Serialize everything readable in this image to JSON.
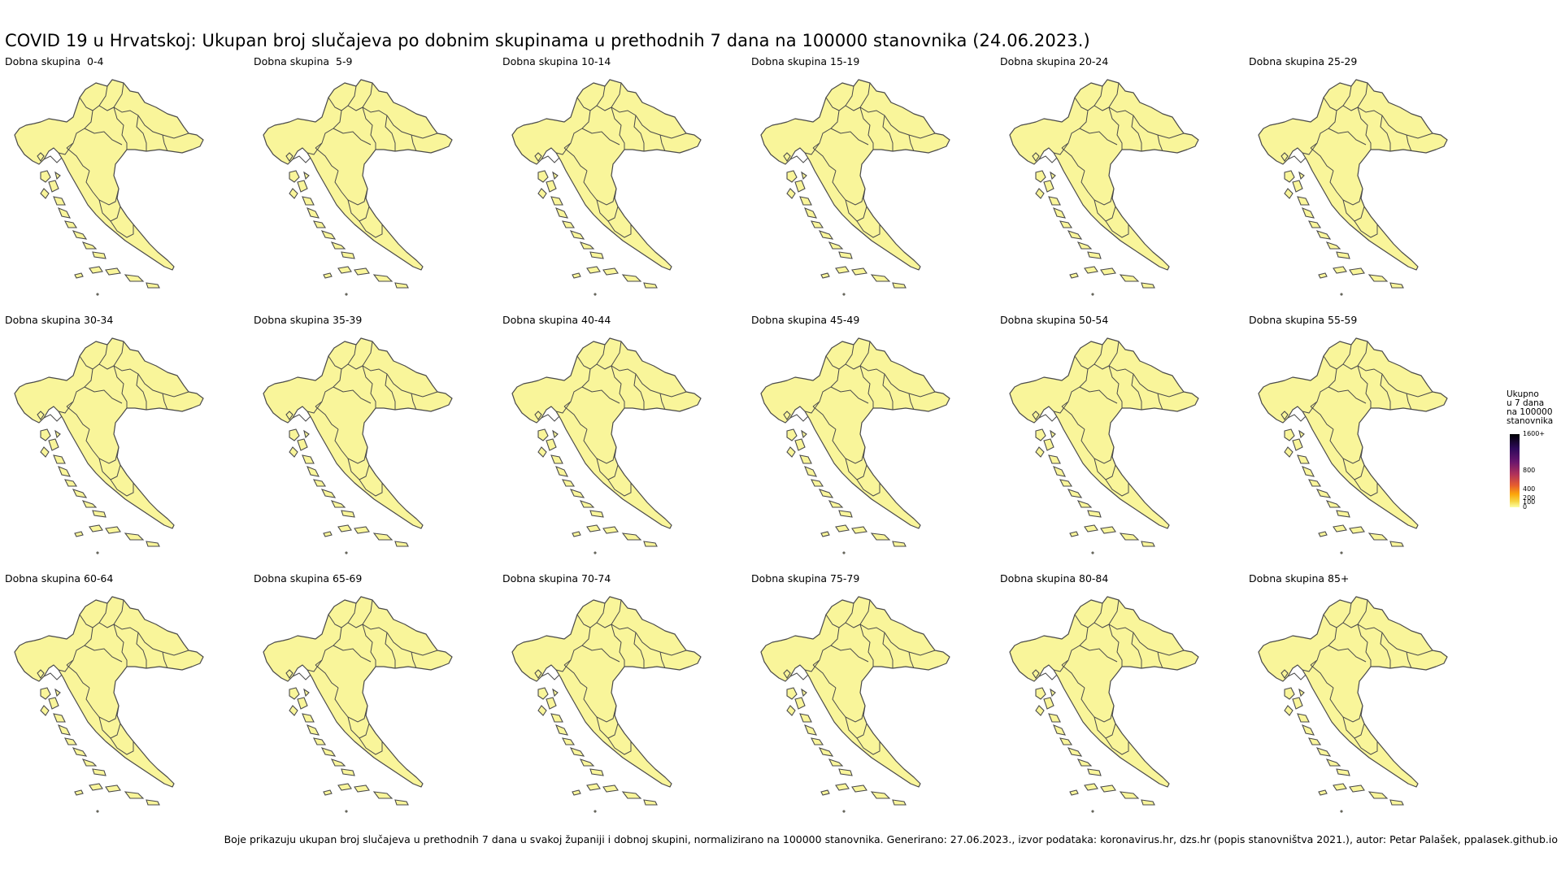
{
  "title": "COVID 19 u Hrvatskoj: Ukupan broj slučajeva po dobnim skupinama u prethodnih 7 dana na 100000 stanovnika (24.06.2023.)",
  "panels": [
    {
      "label": "Dobna skupina  0-4"
    },
    {
      "label": "Dobna skupina  5-9"
    },
    {
      "label": "Dobna skupina 10-14"
    },
    {
      "label": "Dobna skupina 15-19"
    },
    {
      "label": "Dobna skupina 20-24"
    },
    {
      "label": "Dobna skupina 25-29"
    },
    {
      "label": "Dobna skupina 30-34"
    },
    {
      "label": "Dobna skupina 35-39"
    },
    {
      "label": "Dobna skupina 40-44"
    },
    {
      "label": "Dobna skupina 45-49"
    },
    {
      "label": "Dobna skupina 50-54"
    },
    {
      "label": "Dobna skupina 55-59"
    },
    {
      "label": "Dobna skupina 60-64"
    },
    {
      "label": "Dobna skupina 65-69"
    },
    {
      "label": "Dobna skupina 70-74"
    },
    {
      "label": "Dobna skupina 75-79"
    },
    {
      "label": "Dobna skupina 80-84"
    },
    {
      "label": "Dobna skupina 85+"
    }
  ],
  "legend": {
    "title_lines": [
      "Ukupno",
      "u 7 dana",
      "na 100000",
      "stanovnika"
    ],
    "ticks": [
      {
        "value": 1600,
        "label": "1600+"
      },
      {
        "value": 800,
        "label": "800"
      },
      {
        "value": 400,
        "label": "400"
      },
      {
        "value": 200,
        "label": "200"
      },
      {
        "value": 100,
        "label": "100"
      },
      {
        "value": 0,
        "label": "0"
      }
    ],
    "scale_max": 1600,
    "colors": {
      "low": "#fcffa4",
      "high": "#000004"
    }
  },
  "map_fill_color": "#f9f59a",
  "map_border_color": "#4a4a4a",
  "footer": "Boje prikazuju ukupan broj slučajeva u prethodnih 7 dana u svakoj županiji i dobnoj skupini, normalizirano na 100000 stanovnika. Generirano: 27.06.2023., izvor podataka: koronavirus.hr, dzs.hr (popis stanovništva 2021.), autor: Petar Palašek, ppalasek.github.io"
}
